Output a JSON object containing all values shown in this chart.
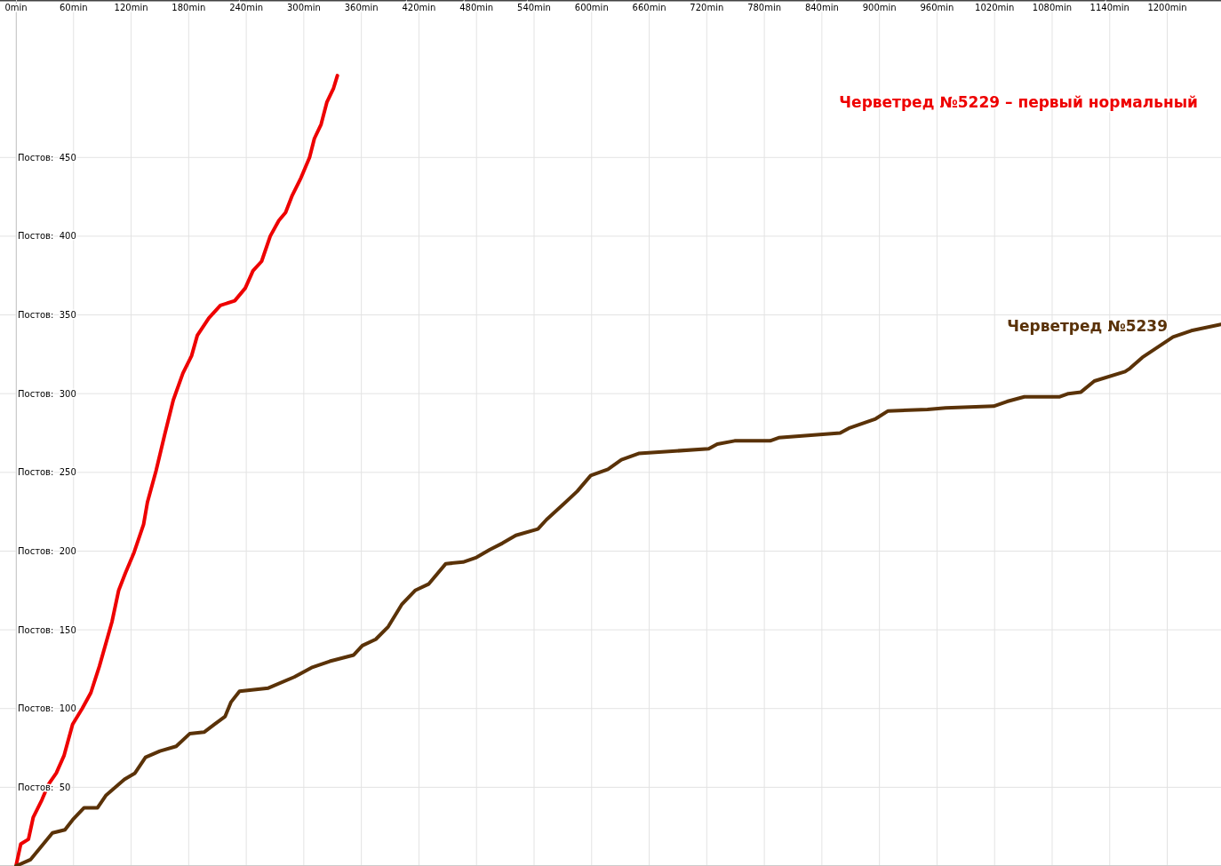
{
  "chart_data": {
    "type": "line",
    "xlim": [
      0,
      1256
    ],
    "ylim": [
      0,
      550
    ],
    "xticks": [
      {
        "value": 0,
        "label": "0min"
      },
      {
        "value": 60,
        "label": "60min"
      },
      {
        "value": 120,
        "label": "120min"
      },
      {
        "value": 180,
        "label": "180min"
      },
      {
        "value": 240,
        "label": "240min"
      },
      {
        "value": 300,
        "label": "300min"
      },
      {
        "value": 360,
        "label": "360min"
      },
      {
        "value": 420,
        "label": "420min"
      },
      {
        "value": 480,
        "label": "480min"
      },
      {
        "value": 540,
        "label": "540min"
      },
      {
        "value": 600,
        "label": "600min"
      },
      {
        "value": 660,
        "label": "660min"
      },
      {
        "value": 720,
        "label": "720min"
      },
      {
        "value": 780,
        "label": "780min"
      },
      {
        "value": 840,
        "label": "840min"
      },
      {
        "value": 900,
        "label": "900min"
      },
      {
        "value": 960,
        "label": "960min"
      },
      {
        "value": 1020,
        "label": "1020min"
      },
      {
        "value": 1080,
        "label": "1080min"
      },
      {
        "value": 1140,
        "label": "1140min"
      },
      {
        "value": 1200,
        "label": "1200min"
      }
    ],
    "yticks": [
      {
        "value": 50,
        "label": "Постов:  50"
      },
      {
        "value": 100,
        "label": "Постов:  100"
      },
      {
        "value": 150,
        "label": "Постов:  150"
      },
      {
        "value": 200,
        "label": "Постов:  200"
      },
      {
        "value": 250,
        "label": "Постов:  250"
      },
      {
        "value": 300,
        "label": "Постов:  300"
      },
      {
        "value": 350,
        "label": "Постов:  350"
      },
      {
        "value": 400,
        "label": "Постов:  400"
      },
      {
        "value": 450,
        "label": "Постов:  450"
      }
    ],
    "grid": true,
    "marker": "none",
    "line_style": "solid",
    "series": [
      {
        "name": "Черветред №5229 – первый нормальный",
        "color": "#ee0000",
        "x": [
          0,
          5,
          13,
          18,
          27,
          34,
          42,
          50,
          59,
          69,
          78,
          87,
          100,
          107,
          114,
          123,
          133,
          137,
          146,
          155,
          164,
          174,
          183,
          189,
          201,
          213,
          228,
          239,
          247,
          256,
          265,
          274,
          281,
          288,
          297,
          306,
          311,
          318,
          324,
          331,
          335
        ],
        "values": [
          0,
          14,
          17,
          31,
          42,
          52,
          59,
          70,
          90,
          100,
          110,
          127,
          155,
          175,
          186,
          199,
          217,
          231,
          251,
          274,
          296,
          313,
          324,
          337,
          348,
          356,
          359,
          367,
          378,
          384,
          400,
          410,
          415,
          426,
          437,
          450,
          462,
          471,
          485,
          494,
          502
        ]
      },
      {
        "name": "Черветред №5239",
        "color": "#5a3208",
        "x": [
          0,
          15,
          38,
          51,
          60,
          71,
          85,
          94,
          113,
          124,
          135,
          150,
          167,
          181,
          196,
          207,
          218,
          224,
          233,
          263,
          290,
          308,
          327,
          352,
          361,
          375,
          388,
          402,
          416,
          430,
          448,
          466,
          480,
          494,
          507,
          521,
          544,
          553,
          571,
          585,
          599,
          617,
          631,
          649,
          722,
          731,
          749,
          786,
          795,
          859,
          868,
          896,
          909,
          950,
          969,
          1019,
          1033,
          1051,
          1088,
          1097,
          1110,
          1124,
          1156,
          1161,
          1174,
          1206,
          1225,
          1256
        ],
        "values": [
          0,
          4,
          21,
          23,
          30,
          37,
          37,
          45,
          55,
          59,
          69,
          73,
          76,
          84,
          85,
          90,
          95,
          104,
          111,
          113,
          120,
          126,
          130,
          134,
          140,
          144,
          152,
          166,
          175,
          179,
          192,
          193,
          196,
          201,
          205,
          210,
          214,
          220,
          230,
          238,
          248,
          252,
          258,
          262,
          265,
          268,
          270,
          270,
          272,
          275,
          278,
          284,
          289,
          290,
          291,
          292,
          295,
          298,
          298,
          300,
          301,
          308,
          314,
          316,
          323,
          336,
          340,
          344
        ]
      }
    ]
  }
}
